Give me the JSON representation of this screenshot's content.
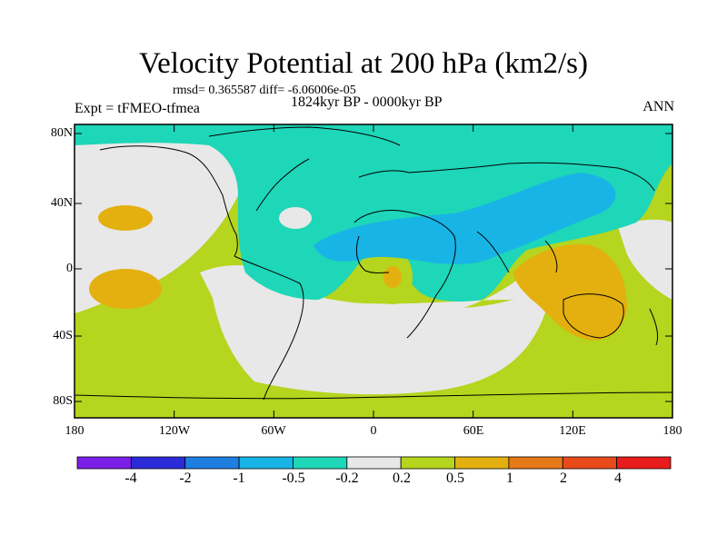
{
  "title": "Velocity Potential at 200 hPa (km2/s)",
  "stats_line": "rmsd= 0.365587 diff= -6.06006e-05",
  "experiment": "Expt = tFMEO-tfmea",
  "period": "1824kyr BP - 0000kyr BP",
  "season": "ANN",
  "lat_ticks": [
    "80N",
    "40N",
    "0",
    "40S",
    "80S"
  ],
  "lon_ticks": [
    "180",
    "120W",
    "60W",
    "0",
    "60E",
    "120E",
    "180"
  ],
  "colorbar": {
    "labels": [
      "-4",
      "-2",
      "-1",
      "-0.5",
      "-0.2",
      "0.2",
      "0.5",
      "1",
      "2",
      "4"
    ],
    "colors": [
      "#7b1fe8",
      "#2b2bd9",
      "#1f7fe0",
      "#18b4e6",
      "#1ed6b8",
      "#e8e8e8",
      "#b5d51e",
      "#e4b010",
      "#e67a18",
      "#e84a1c",
      "#e81c1c"
    ]
  },
  "colors": {
    "ocean_background": "#b5d51e",
    "neutral": "#e8e8e8",
    "negative": "#1ed6b8",
    "strong_negative": "#18b4e6",
    "positive": "#e4b010"
  }
}
